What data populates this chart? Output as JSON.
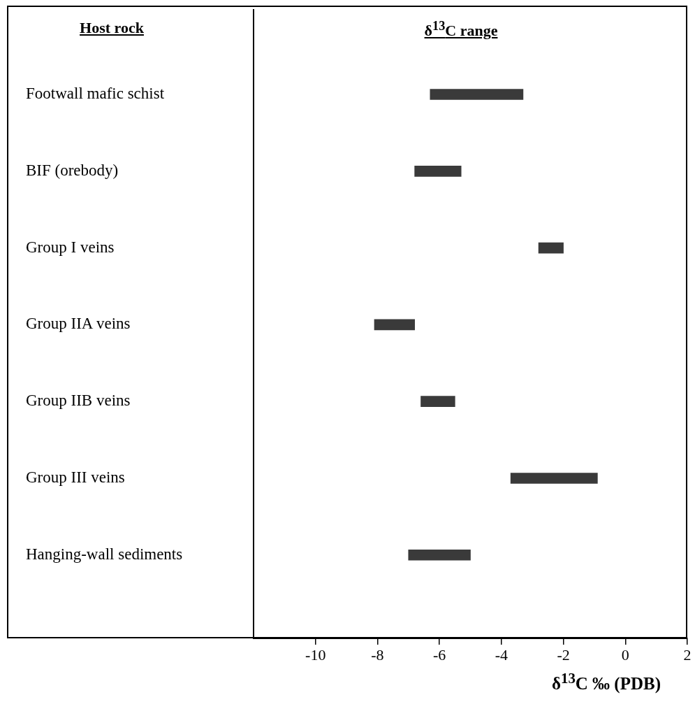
{
  "chart_data": {
    "type": "bar",
    "orientation": "horizontal",
    "title": "δ$^{13}$C range",
    "ylabel": "Host rock",
    "xlabel": "δ$^{13}$C ‰ (PDB)",
    "categories": [
      "Footwall mafic schist",
      "BIF (orebody)",
      "Group I veins",
      "Group IIA veins",
      "Group IIB veins",
      "Group III veins",
      "Hanging-wall sediments"
    ],
    "base": [
      -6.3,
      -6.8,
      -2.8,
      -8.1,
      -6.6,
      -3.7,
      -7.0
    ],
    "values": [
      3.0,
      1.5,
      0.8,
      1.3,
      1.1,
      2.8,
      2.0
    ],
    "color": "#3a3a3a",
    "xlim": [
      -12,
      2
    ],
    "xticks": [
      -10,
      -8,
      -6,
      -4,
      -2,
      0,
      2
    ],
    "grid": false,
    "legend": false
  }
}
